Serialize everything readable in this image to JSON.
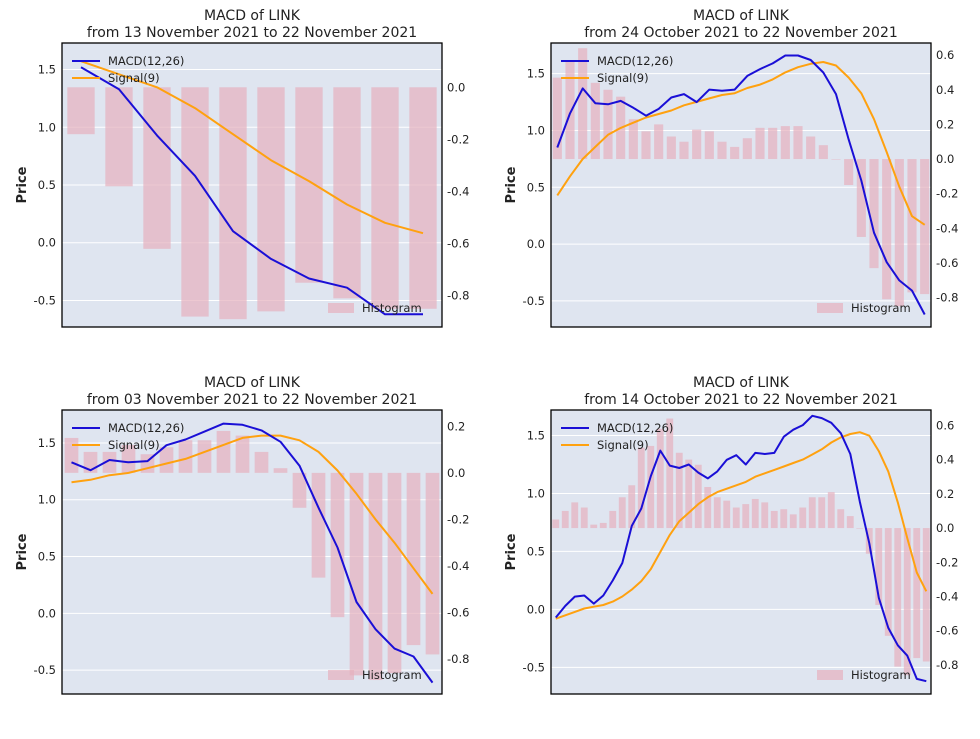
{
  "colors": {
    "background": "#ffffff",
    "plot_bg": "#dfe5f0",
    "grid": "#ffffff",
    "macd": "#1a0fd6",
    "signal": "#ffa10f",
    "histogram": "#e6b0be",
    "axis": "#000000"
  },
  "chart_data": [
    {
      "type": "line",
      "title": "MACD of LINK",
      "subtitle": "from 13 November 2021 to 22 November 2021",
      "ylabel": "Price",
      "ylim": [
        -0.73,
        1.73
      ],
      "y2lim": [
        -0.92,
        0.17
      ],
      "yticks": [
        "-0.5",
        "0.0",
        "0.5",
        "1.0",
        "1.5"
      ],
      "y2ticks": [
        "-0.8",
        "-0.6",
        "-0.4",
        "-0.2",
        "0.0"
      ],
      "x": [
        0,
        1,
        2,
        3,
        4,
        5,
        6,
        7,
        8,
        9
      ],
      "series": [
        {
          "name": "MACD(12,26)",
          "axis": "left",
          "values": [
            1.52,
            1.33,
            0.93,
            0.58,
            0.1,
            -0.14,
            -0.31,
            -0.39,
            -0.62,
            -0.62
          ]
        },
        {
          "name": "Signal(9)",
          "axis": "right",
          "values": [
            0.1,
            0.05,
            0.0,
            -0.08,
            -0.18,
            -0.28,
            -0.36,
            -0.45,
            -0.52,
            -0.56
          ]
        },
        {
          "name": "Histogram",
          "axis": "right",
          "type": "bar",
          "values": [
            -0.18,
            -0.38,
            -0.62,
            -0.88,
            -0.89,
            -0.86,
            -0.75,
            -0.81,
            -0.85,
            -0.85
          ]
        }
      ],
      "legend": [
        "MACD(12,26)",
        "Signal(9)"
      ],
      "legend_position": "top-left",
      "bar_label": "Histogram",
      "right_axis": true
    },
    {
      "type": "line",
      "title": "MACD of LINK",
      "subtitle": "from 24 October 2021 to 22 November 2021",
      "ylabel": "Price",
      "ylim": [
        -0.73,
        1.77
      ],
      "y2lim": [
        -0.97,
        0.67
      ],
      "yticks": [
        "-0.5",
        "0.0",
        "0.5",
        "1.0",
        "1.5"
      ],
      "y2ticks": [
        "-0.8",
        "-0.6",
        "-0.4",
        "-0.2",
        "0.0",
        "0.2",
        "0.4",
        "0.6"
      ],
      "x": [
        0,
        1,
        2,
        3,
        4,
        5,
        6,
        7,
        8,
        9,
        10,
        11,
        12,
        13,
        14,
        15,
        16,
        17,
        18,
        19,
        20,
        21,
        22,
        23,
        24,
        25,
        26,
        27,
        28,
        29
      ],
      "series": [
        {
          "name": "MACD(12,26)",
          "axis": "left",
          "values": [
            0.85,
            1.15,
            1.37,
            1.24,
            1.23,
            1.26,
            1.2,
            1.13,
            1.19,
            1.29,
            1.32,
            1.25,
            1.36,
            1.35,
            1.36,
            1.48,
            1.54,
            1.59,
            1.66,
            1.66,
            1.62,
            1.51,
            1.32,
            0.92,
            0.56,
            0.1,
            -0.16,
            -0.32,
            -0.41,
            -0.62
          ]
        },
        {
          "name": "Signal(9)",
          "axis": "right",
          "values": [
            -0.21,
            -0.1,
            0.0,
            0.07,
            0.14,
            0.18,
            0.21,
            0.24,
            0.26,
            0.28,
            0.31,
            0.33,
            0.35,
            0.37,
            0.38,
            0.41,
            0.43,
            0.46,
            0.5,
            0.53,
            0.55,
            0.56,
            0.54,
            0.47,
            0.38,
            0.23,
            0.04,
            -0.16,
            -0.33,
            -0.38
          ]
        },
        {
          "name": "Histogram",
          "axis": "right",
          "type": "bar",
          "values": [
            0.47,
            0.57,
            0.64,
            0.44,
            0.4,
            0.36,
            0.23,
            0.16,
            0.2,
            0.13,
            0.1,
            0.17,
            0.16,
            0.1,
            0.07,
            0.12,
            0.18,
            0.18,
            0.19,
            0.19,
            0.13,
            0.08,
            0.0,
            -0.15,
            -0.45,
            -0.63,
            -0.81,
            -0.85,
            -0.77,
            -0.78
          ]
        }
      ],
      "legend": [
        "MACD(12,26)",
        "Signal(9)"
      ],
      "legend_position": "top-left",
      "bar_label": "Histogram",
      "right_axis": true
    },
    {
      "type": "line",
      "title": "MACD of LINK",
      "subtitle": "from 03 November 2021 to 22 November 2021",
      "ylabel": "Price",
      "ylim": [
        -0.71,
        1.79
      ],
      "y2lim": [
        -0.95,
        0.27
      ],
      "yticks": [
        "-0.5",
        "0.0",
        "0.5",
        "1.0",
        "1.5"
      ],
      "y2ticks": [
        "-0.8",
        "-0.6",
        "-0.4",
        "-0.2",
        "0.0",
        "0.2"
      ],
      "x": [
        0,
        1,
        2,
        3,
        4,
        5,
        6,
        7,
        8,
        9,
        10,
        11,
        12,
        13,
        14,
        15,
        16,
        17,
        18,
        19
      ],
      "series": [
        {
          "name": "MACD(12,26)",
          "axis": "left",
          "values": [
            1.33,
            1.26,
            1.35,
            1.33,
            1.34,
            1.48,
            1.53,
            1.6,
            1.67,
            1.66,
            1.61,
            1.51,
            1.3,
            0.93,
            0.58,
            0.1,
            -0.14,
            -0.31,
            -0.38,
            -0.61
          ]
        },
        {
          "name": "Signal(9)",
          "axis": "right",
          "values": [
            -0.04,
            -0.03,
            -0.01,
            0.0,
            0.02,
            0.04,
            0.06,
            0.09,
            0.12,
            0.15,
            0.16,
            0.16,
            0.14,
            0.09,
            0.01,
            -0.09,
            -0.2,
            -0.3,
            -0.41,
            -0.52
          ]
        },
        {
          "name": "Histogram",
          "axis": "right",
          "type": "bar",
          "values": [
            0.15,
            0.09,
            0.09,
            0.12,
            0.08,
            0.11,
            0.14,
            0.14,
            0.18,
            0.16,
            0.09,
            0.02,
            -0.15,
            -0.45,
            -0.62,
            -0.87,
            -0.89,
            -0.86,
            -0.74,
            -0.78
          ]
        }
      ],
      "legend": [
        "MACD(12,26)",
        "Signal(9)"
      ],
      "legend_position": "top-left",
      "bar_label": "Histogram",
      "right_axis": true
    },
    {
      "type": "line",
      "title": "MACD of LINK",
      "subtitle": "from 14 October 2021 to 22 November 2021",
      "ylabel": "Price",
      "ylim": [
        -0.73,
        1.72
      ],
      "y2lim": [
        -0.97,
        0.69
      ],
      "yticks": [
        "-0.5",
        "0.0",
        "0.5",
        "1.0",
        "1.5"
      ],
      "y2ticks": [
        "-0.8",
        "-0.6",
        "-0.4",
        "-0.2",
        "0.0",
        "0.2",
        "0.4",
        "0.6"
      ],
      "x": [
        0,
        1,
        2,
        3,
        4,
        5,
        6,
        7,
        8,
        9,
        10,
        11,
        12,
        13,
        14,
        15,
        16,
        17,
        18,
        19,
        20,
        21,
        22,
        23,
        24,
        25,
        26,
        27,
        28,
        29,
        30,
        31,
        32,
        33,
        34,
        35,
        36,
        37,
        38,
        39
      ],
      "series": [
        {
          "name": "MACD(12,26)",
          "axis": "left",
          "values": [
            -0.07,
            0.03,
            0.11,
            0.12,
            0.05,
            0.12,
            0.25,
            0.4,
            0.72,
            0.87,
            1.15,
            1.37,
            1.24,
            1.22,
            1.25,
            1.18,
            1.13,
            1.19,
            1.29,
            1.33,
            1.25,
            1.35,
            1.34,
            1.35,
            1.49,
            1.55,
            1.59,
            1.67,
            1.65,
            1.61,
            1.52,
            1.34,
            0.93,
            0.57,
            0.1,
            -0.16,
            -0.31,
            -0.4,
            -0.6,
            -0.62
          ]
        },
        {
          "name": "Signal(9)",
          "axis": "right",
          "values": [
            -0.53,
            -0.51,
            -0.49,
            -0.47,
            -0.46,
            -0.45,
            -0.43,
            -0.4,
            -0.36,
            -0.31,
            -0.24,
            -0.14,
            -0.04,
            0.04,
            0.09,
            0.14,
            0.18,
            0.21,
            0.23,
            0.25,
            0.27,
            0.3,
            0.32,
            0.34,
            0.36,
            0.38,
            0.4,
            0.43,
            0.46,
            0.5,
            0.53,
            0.55,
            0.56,
            0.54,
            0.45,
            0.33,
            0.15,
            -0.06,
            -0.26,
            -0.37
          ]
        },
        {
          "name": "Histogram",
          "axis": "right",
          "type": "bar",
          "values": [
            0.05,
            0.1,
            0.15,
            0.12,
            0.02,
            0.03,
            0.1,
            0.18,
            0.25,
            0.47,
            0.48,
            0.58,
            0.64,
            0.44,
            0.4,
            0.37,
            0.24,
            0.18,
            0.16,
            0.12,
            0.14,
            0.17,
            0.15,
            0.1,
            0.11,
            0.08,
            0.12,
            0.18,
            0.18,
            0.21,
            0.11,
            0.07,
            0.0,
            -0.15,
            -0.45,
            -0.63,
            -0.81,
            -0.86,
            -0.76,
            -0.78
          ]
        }
      ],
      "legend": [
        "MACD(12,26)",
        "Signal(9)"
      ],
      "legend_position": "top-left",
      "bar_label": "Histogram",
      "right_axis": true
    }
  ]
}
